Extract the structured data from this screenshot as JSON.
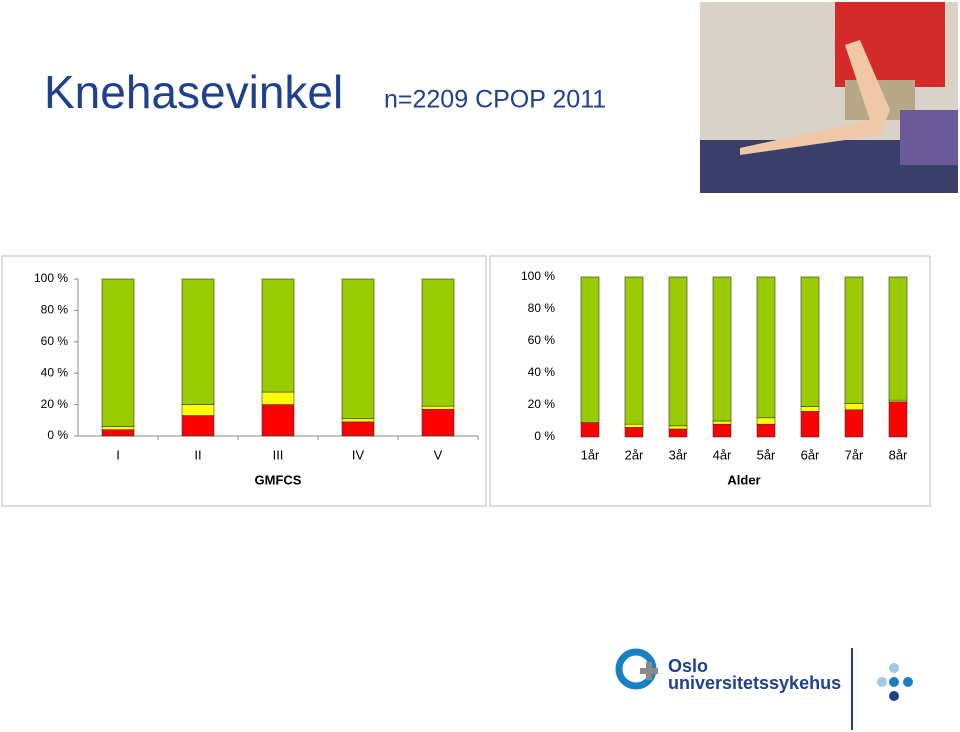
{
  "title": "Knehasevinkel",
  "subtitle": "n=2209 CPOP 2011",
  "logo": {
    "line1": "Oslo",
    "line2": "universitetssykehus"
  },
  "chart_data": [
    {
      "type": "bar",
      "stacked": true,
      "xlabel": "GMFCS",
      "categories": [
        "I",
        "II",
        "III",
        "IV",
        "V"
      ],
      "series": [
        {
          "color": "#ff0000",
          "values": [
            4,
            13,
            20,
            9,
            17
          ]
        },
        {
          "color": "#ffff00",
          "values": [
            2,
            7,
            8,
            2,
            2
          ]
        },
        {
          "color": "#99cc00",
          "values": [
            94,
            80,
            72,
            89,
            81
          ]
        }
      ],
      "ylim": [
        0,
        100
      ],
      "yticks": [
        {
          "value": 0,
          "label": "0 %"
        },
        {
          "value": 20,
          "label": "20 %"
        },
        {
          "value": 40,
          "label": "40 %"
        },
        {
          "value": 60,
          "label": "60 %"
        },
        {
          "value": 80,
          "label": "80 %"
        },
        {
          "value": 100,
          "label": "100 %"
        }
      ],
      "grid": false
    },
    {
      "type": "bar",
      "stacked": true,
      "xlabel": "Alder",
      "categories": [
        "1år",
        "2år",
        "3år",
        "4år",
        "5år",
        "6år",
        "7år",
        "8år"
      ],
      "series": [
        {
          "color": "#ff0000",
          "values": [
            9,
            6,
            5,
            8,
            8,
            16,
            17,
            22
          ]
        },
        {
          "color": "#ffff00",
          "values": [
            0,
            2,
            2,
            2,
            4,
            3,
            4,
            1
          ]
        },
        {
          "color": "#99cc00",
          "values": [
            91,
            92,
            93,
            90,
            88,
            81,
            79,
            77
          ]
        }
      ],
      "ylim": [
        0,
        100
      ],
      "yticks": [
        {
          "value": 0,
          "label": "0 %"
        },
        {
          "value": 20,
          "label": "20 %"
        },
        {
          "value": 40,
          "label": "40 %"
        },
        {
          "value": 60,
          "label": "60 %"
        },
        {
          "value": 80,
          "label": "80 %"
        },
        {
          "value": 100,
          "label": "100 %"
        }
      ],
      "grid": false
    }
  ]
}
